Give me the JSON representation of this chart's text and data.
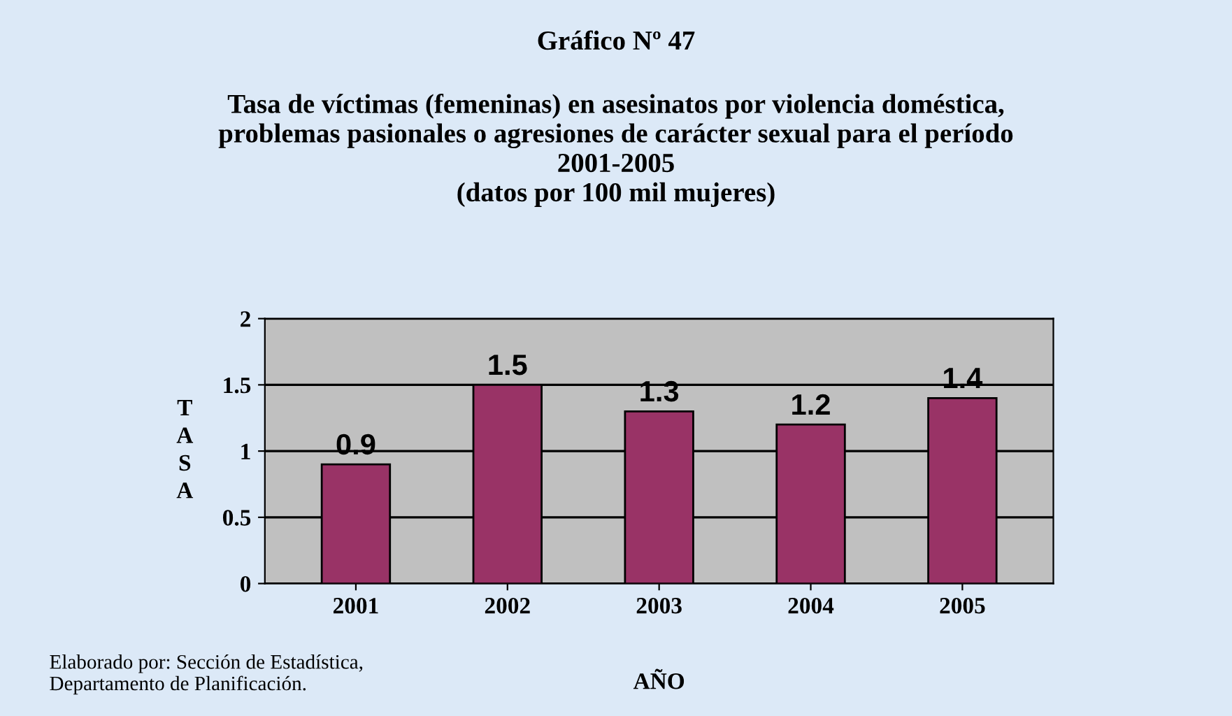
{
  "chart_data": {
    "type": "bar",
    "title": "Gráfico Nº 47",
    "subtitle": "Tasa de víctimas (femeninas) en asesinatos por violencia doméstica,\nproblemas pasionales o agresiones de carácter sexual para el período\n2001-2005\n(datos por 100 mil mujeres)",
    "categories": [
      "2001",
      "2002",
      "2003",
      "2004",
      "2005"
    ],
    "values": [
      0.9,
      1.5,
      1.3,
      1.2,
      1.4
    ],
    "color": "#993366",
    "ylim": [
      0,
      2
    ],
    "yticks": [
      0,
      0.5,
      1,
      1.5,
      2
    ],
    "grid": "y",
    "data_labels": true,
    "xlabel": "AÑO",
    "ylabel": "TASA",
    "annotations": [
      "Elaborado por: Sección de Estadística,\nDepartamento de Planificación."
    ]
  }
}
